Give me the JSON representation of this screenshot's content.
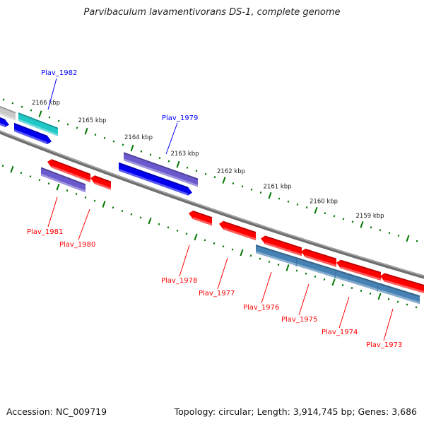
{
  "title": "Parvibaculum lavamentivorans DS-1, complete genome",
  "footer": {
    "accession": "Accession: NC_009719",
    "topology": "Topology: circular; Length: 3,914,745 bp; Genes: 3,686"
  },
  "colors": {
    "forward_label": "#0000ff",
    "reverse_label": "#ff0000",
    "backbone": "#808080",
    "ticks": "#007700",
    "blue": "#0000ee",
    "red": "#ff0000",
    "purple": "#6a5acd",
    "cyan": "#20c8c8",
    "gray": "#c8c8c8",
    "steel": "#4682b4"
  },
  "tick_labels": [
    "2166 kbp",
    "2165 kbp",
    "2164 kbp",
    "2163 kbp",
    "2162 kbp",
    "2161 kbp",
    "2160 kbp",
    "2159 kbp"
  ],
  "genes": [
    {
      "name": "",
      "color": "gray",
      "dir": "none"
    },
    {
      "name": "",
      "color": "blue",
      "dir": "right"
    },
    {
      "name": "Plav_1982",
      "color": "cyan",
      "dir": "none"
    },
    {
      "name": "",
      "color": "blue",
      "dir": "right"
    },
    {
      "name": "Plav_1979",
      "color": "purple",
      "dir": "none"
    },
    {
      "name": "",
      "color": "blue",
      "dir": "right"
    },
    {
      "name": "Plav_1981",
      "color": "purple",
      "dir": "none"
    },
    {
      "name": "Plav_1980",
      "color": "red",
      "dir": "left"
    },
    {
      "name": "",
      "color": "red",
      "dir": "left"
    },
    {
      "name": "Plav_1978",
      "color": "red",
      "dir": "left"
    },
    {
      "name": "Plav_1977",
      "color": "red",
      "dir": "left"
    },
    {
      "name": "Plav_1976",
      "color": "red",
      "dir": "left"
    },
    {
      "name": "Plav_1975",
      "color": "red",
      "dir": "left"
    },
    {
      "name": "Plav_1974",
      "color": "red",
      "dir": "left"
    },
    {
      "name": "Plav_1973",
      "color": "red",
      "dir": "left"
    },
    {
      "name": "",
      "color": "steel",
      "dir": "none"
    }
  ]
}
